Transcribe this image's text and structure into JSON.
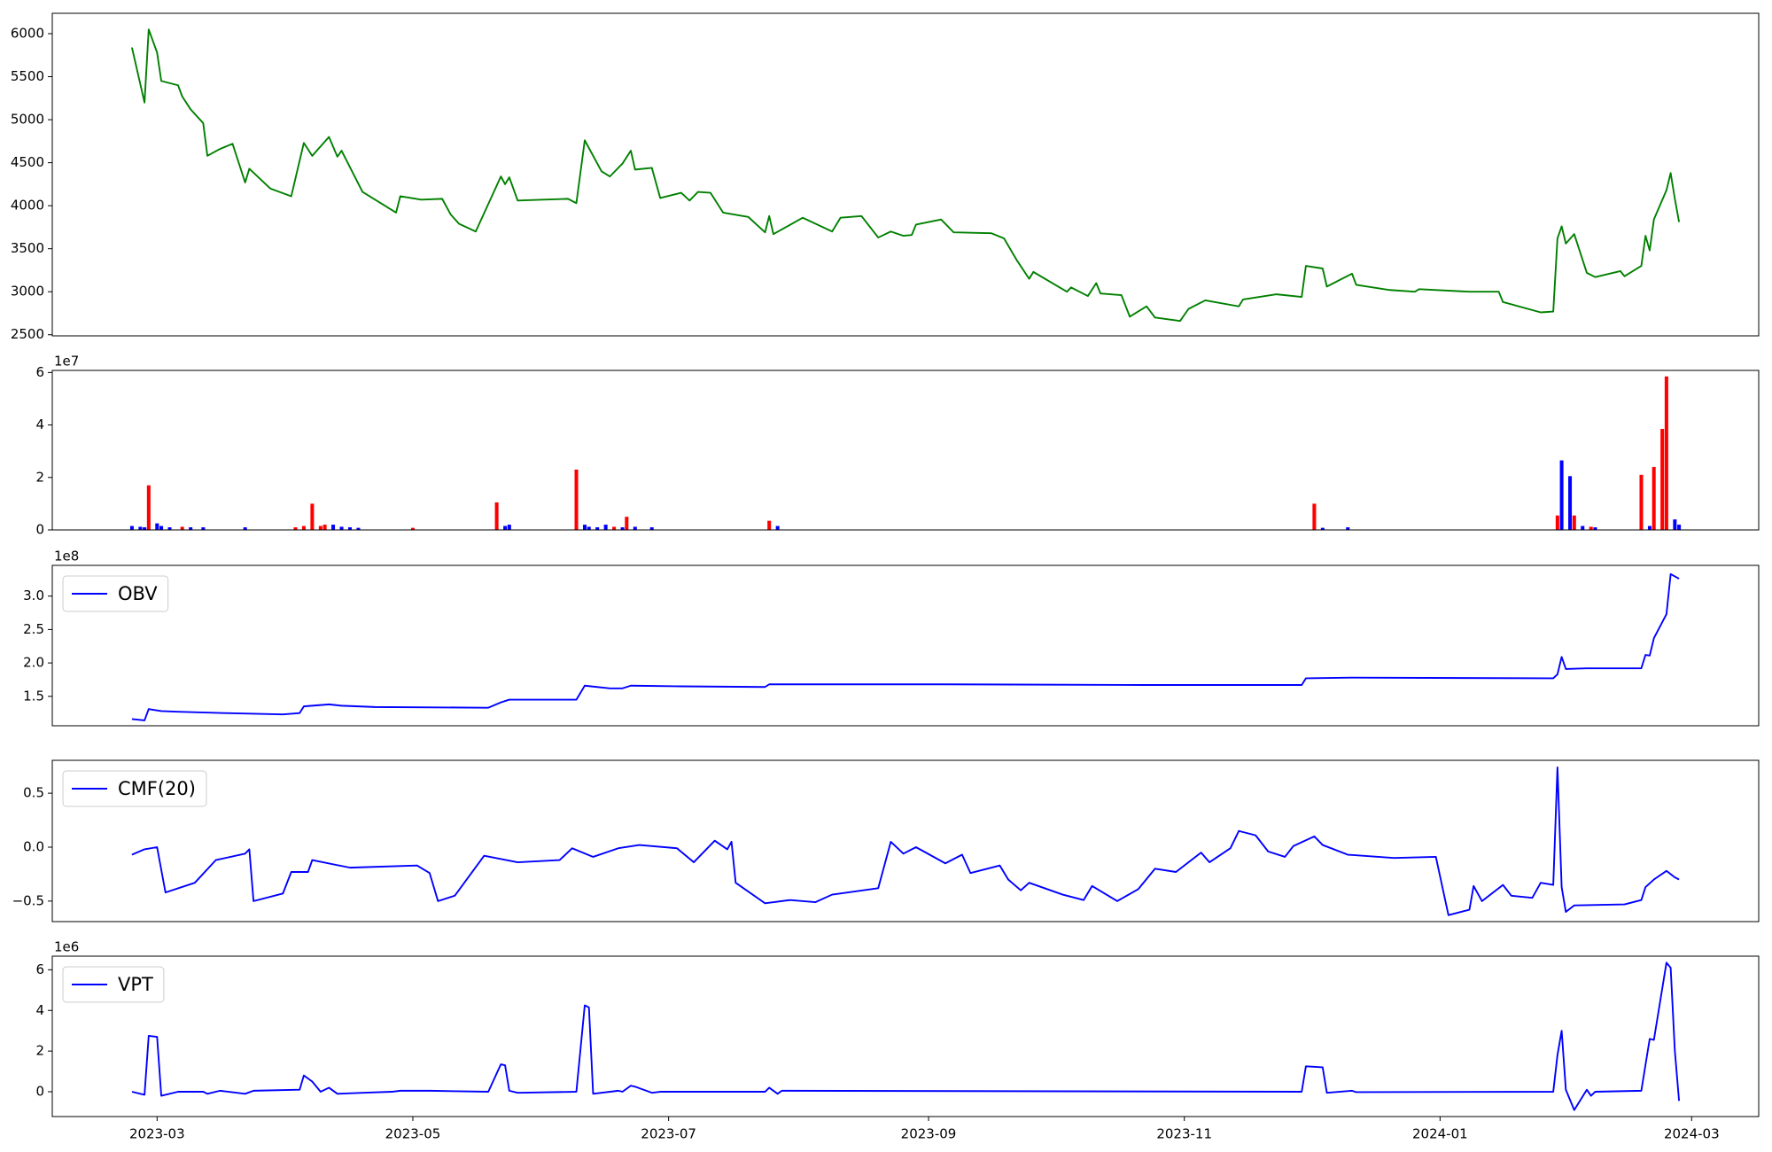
{
  "chart_data": [
    {
      "type": "line",
      "color": "#008000",
      "x": [
        "2023-02-23",
        "2023-02-26",
        "2023-02-27",
        "2023-03-01",
        "2023-03-02",
        "2023-03-06",
        "2023-03-07",
        "2023-03-09",
        "2023-03-12",
        "2023-03-13",
        "2023-03-16",
        "2023-03-19",
        "2023-03-22",
        "2023-03-23",
        "2023-03-28",
        "2023-04-02",
        "2023-04-05",
        "2023-04-07",
        "2023-04-11",
        "2023-04-13",
        "2023-04-14",
        "2023-04-19",
        "2023-04-27",
        "2023-04-28",
        "2023-05-03",
        "2023-05-08",
        "2023-05-10",
        "2023-05-12",
        "2023-05-16",
        "2023-05-22",
        "2023-05-23",
        "2023-05-24",
        "2023-05-26",
        "2023-06-01",
        "2023-06-07",
        "2023-06-09",
        "2023-06-11",
        "2023-06-15",
        "2023-06-17",
        "2023-06-20",
        "2023-06-22",
        "2023-06-23",
        "2023-06-27",
        "2023-06-29",
        "2023-07-04",
        "2023-07-06",
        "2023-07-08",
        "2023-07-11",
        "2023-07-14",
        "2023-07-20",
        "2023-07-24",
        "2023-07-25",
        "2023-07-26",
        "2023-08-02",
        "2023-08-09",
        "2023-08-11",
        "2023-08-16",
        "2023-08-20",
        "2023-08-23",
        "2023-08-26",
        "2023-08-28",
        "2023-08-29",
        "2023-09-04",
        "2023-09-07",
        "2023-09-16",
        "2023-09-19",
        "2023-09-22",
        "2023-09-25",
        "2023-09-26",
        "2023-10-04",
        "2023-10-05",
        "2023-10-09",
        "2023-10-11",
        "2023-10-12",
        "2023-10-17",
        "2023-10-19",
        "2023-10-23",
        "2023-10-25",
        "2023-10-31",
        "2023-11-02",
        "2023-11-06",
        "2023-11-14",
        "2023-11-15",
        "2023-11-23",
        "2023-11-29",
        "2023-11-30",
        "2023-12-04",
        "2023-12-05",
        "2023-12-11",
        "2023-12-12",
        "2023-12-20",
        "2023-12-26",
        "2023-12-27",
        "2024-01-08",
        "2024-01-15",
        "2024-01-16",
        "2024-01-25",
        "2024-01-28",
        "2024-01-29",
        "2024-01-30",
        "2024-01-31",
        "2024-02-02",
        "2024-02-05",
        "2024-02-07",
        "2024-02-13",
        "2024-02-14",
        "2024-02-18",
        "2024-02-19",
        "2024-02-20",
        "2024-02-21",
        "2024-02-24",
        "2024-02-25",
        "2024-02-26",
        "2024-02-27"
      ],
      "values": [
        5840,
        5200,
        6050,
        5780,
        5450,
        5400,
        5270,
        5120,
        4960,
        4580,
        4660,
        4720,
        4270,
        4430,
        4200,
        4110,
        4730,
        4580,
        4800,
        4570,
        4640,
        4160,
        3920,
        4110,
        4070,
        4080,
        3900,
        3790,
        3700,
        4340,
        4250,
        4330,
        4060,
        4070,
        4080,
        4030,
        4760,
        4400,
        4340,
        4490,
        4640,
        4420,
        4440,
        4090,
        4150,
        4060,
        4160,
        4150,
        3920,
        3870,
        3690,
        3880,
        3670,
        3860,
        3700,
        3860,
        3880,
        3630,
        3700,
        3650,
        3660,
        3780,
        3840,
        3690,
        3680,
        3620,
        3370,
        3150,
        3230,
        3000,
        3050,
        2950,
        3100,
        2980,
        2960,
        2710,
        2830,
        2700,
        2660,
        2800,
        2900,
        2830,
        2910,
        2970,
        2940,
        3300,
        3270,
        3060,
        3210,
        3080,
        3020,
        3000,
        3030,
        3000,
        3000,
        2880,
        2760,
        2770,
        3620,
        3760,
        3560,
        3670,
        3220,
        3170,
        3240,
        3180,
        3300,
        3650,
        3480,
        3840,
        4180,
        4380,
        4080,
        3810
      ],
      "xlim": [
        "2023-02-04",
        "2024-03-17"
      ],
      "ylim": [
        2487,
        6237
      ],
      "yticks": [
        2500,
        3000,
        3500,
        4000,
        4500,
        5000,
        5500,
        6000
      ]
    },
    {
      "type": "bar",
      "offset_label": "1e7",
      "x": [
        "2023-02-23",
        "2023-02-25",
        "2023-02-26",
        "2023-02-27",
        "2023-03-01",
        "2023-03-02",
        "2023-03-04",
        "2023-03-07",
        "2023-03-09",
        "2023-03-12",
        "2023-03-22",
        "2023-04-03",
        "2023-04-05",
        "2023-04-07",
        "2023-04-09",
        "2023-04-10",
        "2023-04-12",
        "2023-04-14",
        "2023-04-16",
        "2023-04-18",
        "2023-05-01",
        "2023-05-21",
        "2023-05-23",
        "2023-05-24",
        "2023-06-09",
        "2023-06-11",
        "2023-06-12",
        "2023-06-14",
        "2023-06-16",
        "2023-06-18",
        "2023-06-20",
        "2023-06-21",
        "2023-06-23",
        "2023-06-27",
        "2023-07-25",
        "2023-07-27",
        "2023-12-02",
        "2023-12-04",
        "2023-12-10",
        "2024-01-29",
        "2024-01-30",
        "2024-02-01",
        "2024-02-02",
        "2024-02-04",
        "2024-02-06",
        "2024-02-07",
        "2024-02-18",
        "2024-02-20",
        "2024-02-21",
        "2024-02-23",
        "2024-02-24",
        "2024-02-26",
        "2024-02-27"
      ],
      "values": [
        1500000,
        1200000,
        1000000,
        17000000,
        2500000,
        1500000,
        1000000,
        1200000,
        1000000,
        1000000,
        1000000,
        1000000,
        1500000,
        10000000,
        1500000,
        2000000,
        2000000,
        1200000,
        1000000,
        800000,
        800000,
        10500000,
        1500000,
        2000000,
        23000000,
        2000000,
        1200000,
        1000000,
        2000000,
        1200000,
        1000000,
        5000000,
        1200000,
        1000000,
        3500000,
        1500000,
        10000000,
        800000,
        1000000,
        5500000,
        26500000,
        20500000,
        5500000,
        1500000,
        1200000,
        1000000,
        21000000,
        1500000,
        24000000,
        38500000,
        58500000,
        4000000,
        2000000
      ],
      "colors": [
        "#0000ff",
        "#0000ff",
        "#0000ff",
        "#ff0000",
        "#0000ff",
        "#0000ff",
        "#0000ff",
        "#ff0000",
        "#0000ff",
        "#0000ff",
        "#0000ff",
        "#ff0000",
        "#ff0000",
        "#ff0000",
        "#ff0000",
        "#ff0000",
        "#0000ff",
        "#0000ff",
        "#0000ff",
        "#0000ff",
        "#ff0000",
        "#ff0000",
        "#0000ff",
        "#0000ff",
        "#ff0000",
        "#0000ff",
        "#0000ff",
        "#0000ff",
        "#0000ff",
        "#ff0000",
        "#0000ff",
        "#ff0000",
        "#0000ff",
        "#0000ff",
        "#ff0000",
        "#0000ff",
        "#ff0000",
        "#0000ff",
        "#0000ff",
        "#ff0000",
        "#0000ff",
        "#0000ff",
        "#ff0000",
        "#0000ff",
        "#ff0000",
        "#0000ff",
        "#ff0000",
        "#0000ff",
        "#ff0000",
        "#ff0000",
        "#ff0000",
        "#0000ff",
        "#0000ff"
      ],
      "xlim": [
        "2023-02-04",
        "2024-03-17"
      ],
      "ylim": [
        0,
        60800000
      ],
      "yticks": [
        {
          "value": 0,
          "label": "0"
        },
        {
          "value": 20000000,
          "label": "2"
        },
        {
          "value": 40000000,
          "label": "4"
        },
        {
          "value": 60000000,
          "label": "6"
        }
      ]
    },
    {
      "type": "line",
      "offset_label": "1e8",
      "legend": "upper left",
      "series": [
        {
          "name": "OBV",
          "color": "#0000ff",
          "x": [
            "2023-02-23",
            "2023-02-26",
            "2023-02-27",
            "2023-03-02",
            "2023-03-06",
            "2023-03-17",
            "2023-03-31",
            "2023-04-04",
            "2023-04-05",
            "2023-04-11",
            "2023-04-14",
            "2023-04-22",
            "2023-05-19",
            "2023-05-22",
            "2023-05-24",
            "2023-06-09",
            "2023-06-11",
            "2023-06-17",
            "2023-06-20",
            "2023-06-22",
            "2023-07-04",
            "2023-07-24",
            "2023-07-25",
            "2023-08-17",
            "2023-09-05",
            "2023-10-22",
            "2023-11-29",
            "2023-11-30",
            "2023-12-11",
            "2024-01-28",
            "2024-01-29",
            "2024-01-30",
            "2024-01-31",
            "2024-02-05",
            "2024-02-18",
            "2024-02-19",
            "2024-02-20",
            "2024-02-21",
            "2024-02-24",
            "2024-02-25",
            "2024-02-27"
          ],
          "values": [
            116000000,
            114000000,
            131000000,
            128000000,
            127000000,
            125000000,
            123000000,
            125000000,
            135000000,
            138000000,
            136000000,
            134000000,
            133000000,
            141000000,
            145000000,
            145000000,
            166000000,
            162000000,
            162000000,
            166000000,
            165000000,
            164000000,
            168000000,
            168000000,
            168000000,
            167000000,
            167000000,
            177000000,
            178000000,
            177000000,
            183000000,
            209000000,
            191000000,
            192000000,
            192000000,
            212000000,
            211000000,
            237000000,
            273000000,
            333000000,
            326000000
          ]
        }
      ],
      "xlim": [
        "2023-02-04",
        "2024-03-17"
      ],
      "ylim": [
        106000000,
        346000000
      ],
      "yticks": [
        {
          "value": 150000000,
          "label": "1.5"
        },
        {
          "value": 200000000,
          "label": "2.0"
        },
        {
          "value": 250000000,
          "label": "2.5"
        },
        {
          "value": 300000000,
          "label": "3.0"
        }
      ]
    },
    {
      "type": "line",
      "legend": "upper left",
      "series": [
        {
          "name": "CMF(20)",
          "color": "#0000ff",
          "x": [
            "2023-02-23",
            "2023-02-26",
            "2023-03-01",
            "2023-03-03",
            "2023-03-10",
            "2023-03-15",
            "2023-03-22",
            "2023-03-23",
            "2023-03-24",
            "2023-03-31",
            "2023-04-02",
            "2023-04-06",
            "2023-04-07",
            "2023-04-16",
            "2023-05-02",
            "2023-05-05",
            "2023-05-07",
            "2023-05-11",
            "2023-05-18",
            "2023-05-26",
            "2023-06-05",
            "2023-06-08",
            "2023-06-13",
            "2023-06-19",
            "2023-06-24",
            "2023-07-03",
            "2023-07-07",
            "2023-07-12",
            "2023-07-15",
            "2023-07-16",
            "2023-07-17",
            "2023-07-24",
            "2023-07-30",
            "2023-08-05",
            "2023-08-09",
            "2023-08-20",
            "2023-08-23",
            "2023-08-26",
            "2023-08-29",
            "2023-09-05",
            "2023-09-09",
            "2023-09-11",
            "2023-09-18",
            "2023-09-20",
            "2023-09-23",
            "2023-09-25",
            "2023-10-03",
            "2023-10-08",
            "2023-10-10",
            "2023-10-16",
            "2023-10-21",
            "2023-10-25",
            "2023-10-30",
            "2023-11-05",
            "2023-11-07",
            "2023-11-12",
            "2023-11-14",
            "2023-11-18",
            "2023-11-21",
            "2023-11-25",
            "2023-11-27",
            "2023-12-02",
            "2023-12-04",
            "2023-12-10",
            "2023-12-21",
            "2023-12-31",
            "2024-01-03",
            "2024-01-08",
            "2024-01-09",
            "2024-01-11",
            "2024-01-16",
            "2024-01-18",
            "2024-01-23",
            "2024-01-25",
            "2024-01-28",
            "2024-01-29",
            "2024-01-30",
            "2024-01-31",
            "2024-02-02",
            "2024-02-14",
            "2024-02-18",
            "2024-02-19",
            "2024-02-21",
            "2024-02-24",
            "2024-02-26",
            "2024-02-27"
          ],
          "values": [
            -0.07,
            -0.02,
            0.0,
            -0.42,
            -0.33,
            -0.12,
            -0.06,
            -0.02,
            -0.5,
            -0.43,
            -0.23,
            -0.23,
            -0.12,
            -0.19,
            -0.17,
            -0.24,
            -0.5,
            -0.45,
            -0.08,
            -0.14,
            -0.12,
            -0.01,
            -0.09,
            -0.01,
            0.02,
            -0.01,
            -0.14,
            0.06,
            -0.02,
            0.05,
            -0.33,
            -0.52,
            -0.49,
            -0.51,
            -0.44,
            -0.38,
            0.05,
            -0.06,
            0.0,
            -0.15,
            -0.07,
            -0.24,
            -0.17,
            -0.3,
            -0.4,
            -0.33,
            -0.44,
            -0.49,
            -0.36,
            -0.5,
            -0.39,
            -0.2,
            -0.23,
            -0.05,
            -0.14,
            -0.01,
            0.15,
            0.11,
            -0.04,
            -0.09,
            0.01,
            0.1,
            0.02,
            -0.07,
            -0.1,
            -0.09,
            -0.63,
            -0.58,
            -0.36,
            -0.5,
            -0.35,
            -0.45,
            -0.47,
            -0.33,
            -0.35,
            0.74,
            -0.37,
            -0.6,
            -0.54,
            -0.53,
            -0.49,
            -0.37,
            -0.3,
            -0.22,
            -0.28,
            -0.3
          ]
        }
      ],
      "xlim": [
        "2023-02-04",
        "2024-03-17"
      ],
      "ylim": [
        -0.69,
        0.805
      ],
      "yticks": [
        {
          "value": -0.5,
          "label": "−0.5"
        },
        {
          "value": 0,
          "label": "0.0"
        },
        0.5
      ]
    },
    {
      "type": "line",
      "offset_label": "1e6",
      "legend": "upper left",
      "series": [
        {
          "name": "VPT",
          "color": "#0000ff",
          "x": [
            "2023-02-23",
            "2023-02-26",
            "2023-02-27",
            "2023-03-01",
            "2023-03-02",
            "2023-03-06",
            "2023-03-12",
            "2023-03-13",
            "2023-03-16",
            "2023-03-22",
            "2023-03-24",
            "2023-04-04",
            "2023-04-05",
            "2023-04-07",
            "2023-04-09",
            "2023-04-11",
            "2023-04-13",
            "2023-04-19",
            "2023-04-26",
            "2023-04-28",
            "2023-05-05",
            "2023-05-19",
            "2023-05-22",
            "2023-05-23",
            "2023-05-24",
            "2023-05-26",
            "2023-06-09",
            "2023-06-11",
            "2023-06-12",
            "2023-06-13",
            "2023-06-19",
            "2023-06-20",
            "2023-06-22",
            "2023-06-23",
            "2023-06-27",
            "2023-06-29",
            "2023-07-24",
            "2023-07-25",
            "2023-07-27",
            "2023-07-28",
            "2023-11-29",
            "2023-11-30",
            "2023-12-04",
            "2023-12-05",
            "2023-12-11",
            "2023-12-12",
            "2024-01-28",
            "2024-01-29",
            "2024-01-30",
            "2024-01-31",
            "2024-02-02",
            "2024-02-05",
            "2024-02-06",
            "2024-02-07",
            "2024-02-18",
            "2024-02-20",
            "2024-02-21",
            "2024-02-24",
            "2024-02-25",
            "2024-02-26",
            "2024-02-27"
          ],
          "values": [
            0,
            -150000,
            2750000,
            2700000,
            -200000,
            0,
            0,
            -100000,
            50000,
            -100000,
            50000,
            100000,
            800000,
            500000,
            0,
            200000,
            -100000,
            -50000,
            0,
            50000,
            50000,
            0,
            1350000,
            1300000,
            50000,
            -50000,
            0,
            4250000,
            4150000,
            -100000,
            50000,
            0,
            300000,
            250000,
            -50000,
            0,
            0,
            200000,
            -100000,
            50000,
            0,
            1250000,
            1200000,
            -50000,
            50000,
            -20000,
            0,
            1800000,
            3000000,
            100000,
            -900000,
            100000,
            -200000,
            0,
            50000,
            2600000,
            2550000,
            6350000,
            6100000,
            2000000,
            -450000
          ]
        }
      ],
      "xlim": [
        "2023-02-04",
        "2024-03-17"
      ],
      "ylim": [
        -1220000,
        6670000
      ],
      "yticks": [
        {
          "value": 0,
          "label": "0"
        },
        {
          "value": 2000000,
          "label": "2"
        },
        {
          "value": 4000000,
          "label": "4"
        },
        {
          "value": 6000000,
          "label": "6"
        }
      ],
      "xticks": [
        "2023-03",
        "2023-05",
        "2023-07",
        "2023-09",
        "2023-11",
        "2024-01",
        "2024-03"
      ]
    }
  ]
}
